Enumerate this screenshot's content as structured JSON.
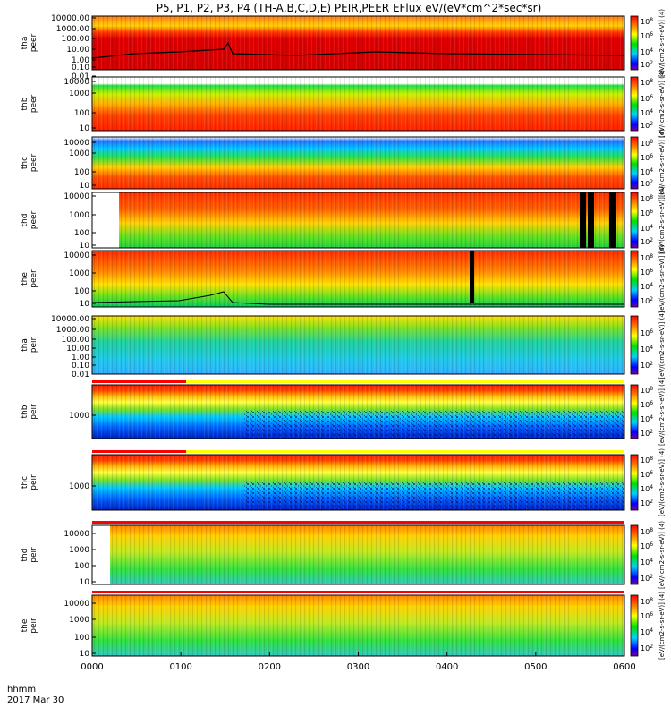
{
  "title": "P5, P1, P2, P3, P4 (TH-A,B,C,D,E) PEIR,PEER EFlux eV/(eV*cm^2*sec*sr)",
  "footer": {
    "label1": "hhmm",
    "label2": "2017 Mar 30"
  },
  "colors": {
    "red": "#ff0000",
    "orange": "#ff6a00",
    "yellow": "#ffff00",
    "green": "#00e000",
    "cyan": "#00d0ff",
    "blue": "#0000ff",
    "black": "#000000"
  },
  "chart_data": {
    "type": "heatmap",
    "x_ticks": [
      "0000",
      "0100",
      "0200",
      "0300",
      "0400",
      "0500",
      "0600"
    ],
    "x_range": [
      "0000",
      "0600"
    ],
    "panels": [
      {
        "label": "tha peer",
        "ytick_labels": [
          "10000.00",
          "1000.00",
          "100.00",
          "10.00",
          "1.00",
          "0.10",
          "0.01"
        ],
        "colorbar": [
          "10^8",
          "10^6",
          "10^4",
          "10^2"
        ],
        "colorbar_label": "[eV/(cm2-s-sr-eV)] (4)"
      },
      {
        "label": "thb peer",
        "ytick_labels": [
          "10000",
          "1000",
          "100",
          "10"
        ],
        "colorbar": [
          "10^8",
          "10^6",
          "10^4",
          "10^2"
        ],
        "colorbar_label": "[eV/(cm2-s-sr-eV)] (4)"
      },
      {
        "label": "thc peer",
        "ytick_labels": [
          "10000",
          "1000",
          "100",
          "10"
        ],
        "colorbar": [
          "10^8",
          "10^6",
          "10^4",
          "10^2"
        ],
        "colorbar_label": "[eV/(cm2-s-sr-eV)] (4)"
      },
      {
        "label": "thd peer",
        "ytick_labels": [
          "10000",
          "1000",
          "100",
          "10"
        ],
        "colorbar": [
          "10^8",
          "10^6",
          "10^4",
          "10^2"
        ],
        "colorbar_label": "[eV/(cm2-s-sr-eV)] (4)"
      },
      {
        "label": "the peer",
        "ytick_labels": [
          "10000",
          "1000",
          "100",
          "10"
        ],
        "colorbar": [
          "10^8",
          "10^6",
          "10^4",
          "10^2"
        ],
        "colorbar_label": "[eV/(cm2-s-sr-eV)] (4)"
      },
      {
        "label": "tha peir",
        "ytick_labels": [
          "10000.00",
          "1000.00",
          "100.00",
          "10.00",
          "1.00",
          "0.10",
          "0.01"
        ],
        "colorbar": [
          "10^6",
          "10^4",
          "10^2"
        ],
        "colorbar_label": "[eV/(cm2-s-sr-eV)] (4)"
      },
      {
        "label": "thb peir",
        "ytick_labels": [
          "1000"
        ],
        "colorbar": [
          "10^8",
          "10^6",
          "10^4",
          "10^2"
        ],
        "colorbar_label": "[eV/(cm2-s-sr-eV)] (4)"
      },
      {
        "label": "thc peir",
        "ytick_labels": [
          "1000"
        ],
        "colorbar": [
          "10^8",
          "10^6",
          "10^4",
          "10^2"
        ],
        "colorbar_label": "[eV/(cm2-s-sr-eV)] (4)"
      },
      {
        "label": "thd peir",
        "ytick_labels": [
          "10000",
          "1000",
          "100",
          "10"
        ],
        "colorbar": [
          "10^8",
          "10^6",
          "10^4",
          "10^2"
        ],
        "colorbar_label": "[eV/(cm2-s-sr-eV)] (4)"
      },
      {
        "label": "the peir",
        "ytick_labels": [
          "10000",
          "1000",
          "100",
          "10"
        ],
        "colorbar": [
          "10^8",
          "10^6",
          "10^4",
          "10^2"
        ],
        "colorbar_label": "[eV/(cm2-s-sr-eV)] (4)"
      }
    ]
  }
}
